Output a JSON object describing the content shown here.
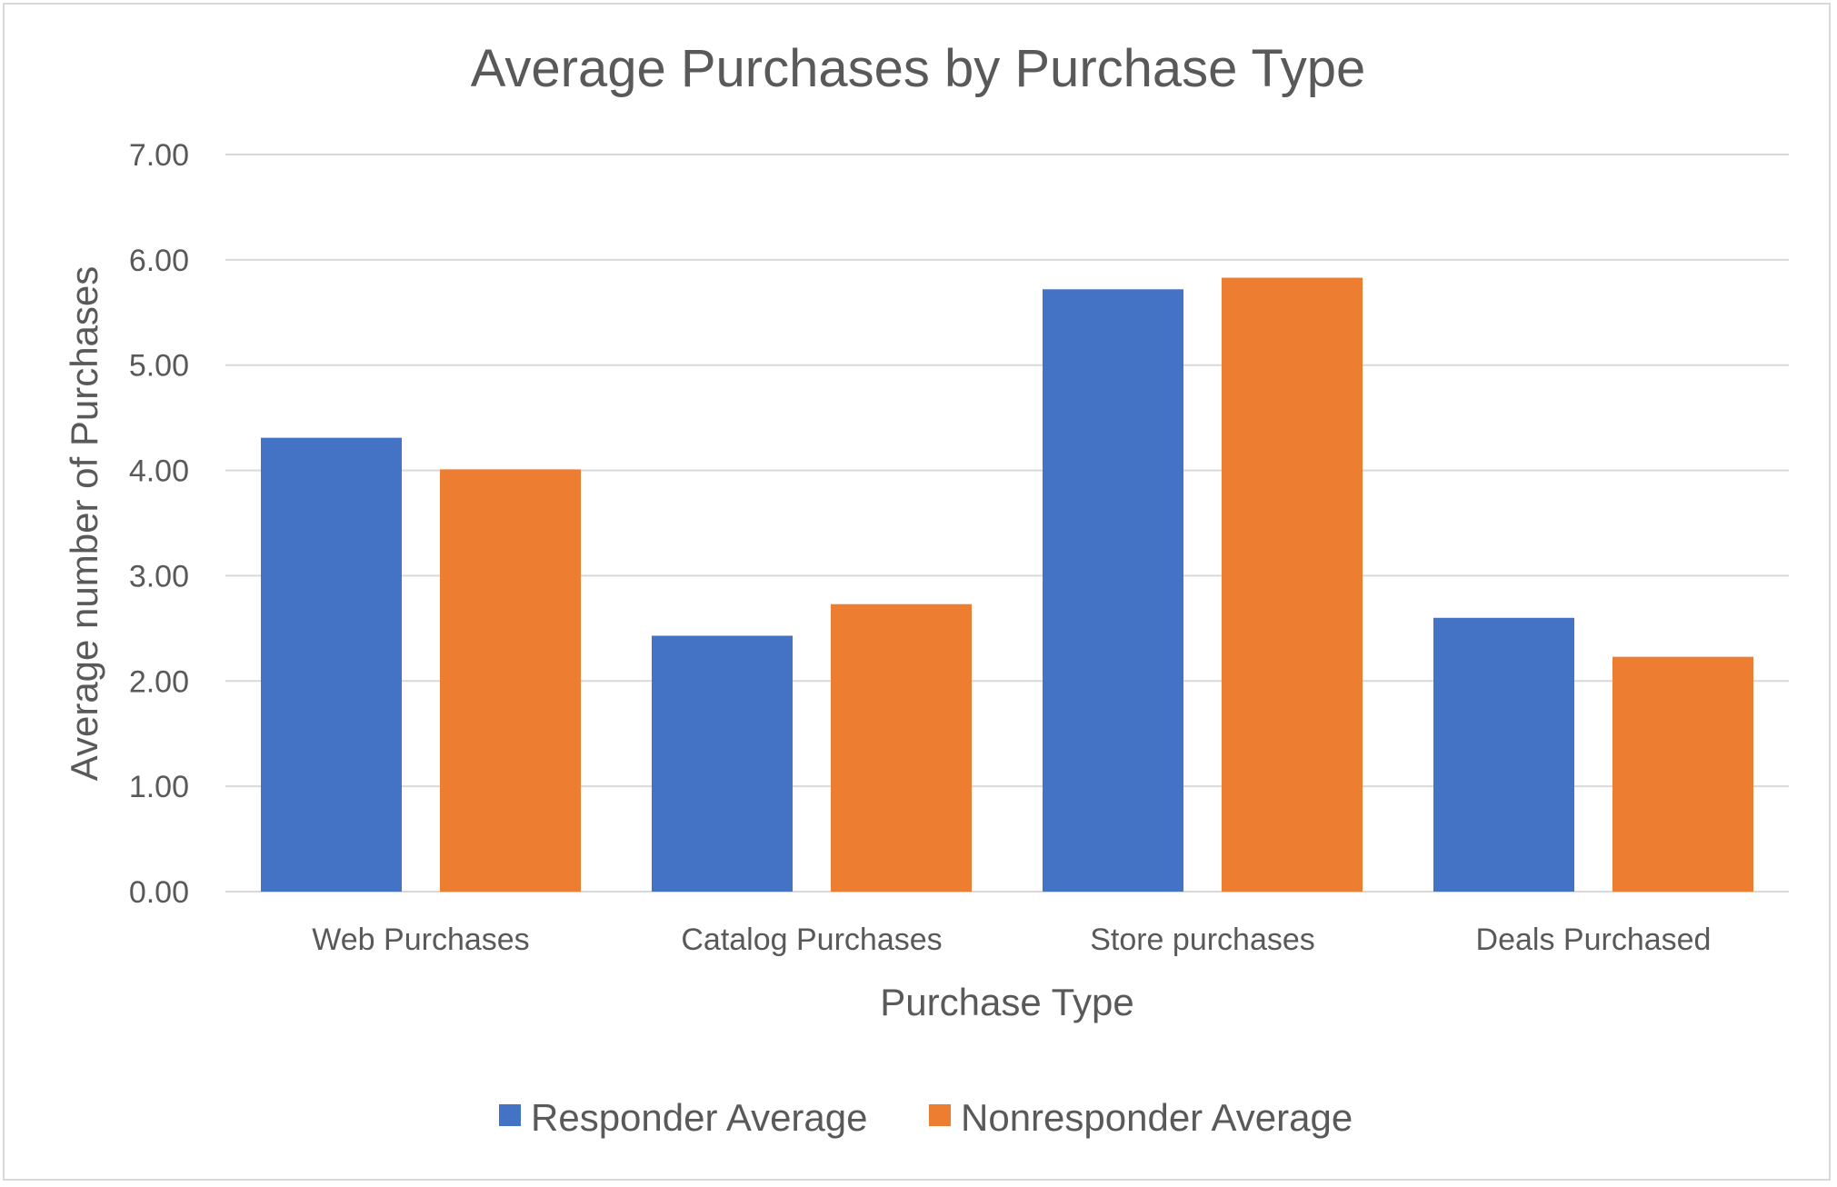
{
  "colors": {
    "responder": "#4472C4",
    "nonresponder": "#ED7D31",
    "gridline": "#d9d9d9",
    "text": "#595959"
  },
  "chart_data": {
    "type": "bar",
    "title": "Average Purchases by Purchase Type",
    "xlabel": "Purchase Type",
    "ylabel": "Average number of Purchases",
    "categories": [
      "Web Purchases",
      "Catalog Purchases",
      "Store purchases",
      "Deals Purchased"
    ],
    "series": [
      {
        "name": "Responder Average",
        "values": [
          4.31,
          2.43,
          5.72,
          2.6
        ]
      },
      {
        "name": "Nonresponder Average",
        "values": [
          4.01,
          2.73,
          5.83,
          2.23
        ]
      }
    ],
    "ylim": [
      0,
      7
    ],
    "yticks": [
      "0.00",
      "1.00",
      "2.00",
      "3.00",
      "4.00",
      "5.00",
      "6.00",
      "7.00"
    ],
    "grid": true,
    "legend_position": "bottom"
  }
}
